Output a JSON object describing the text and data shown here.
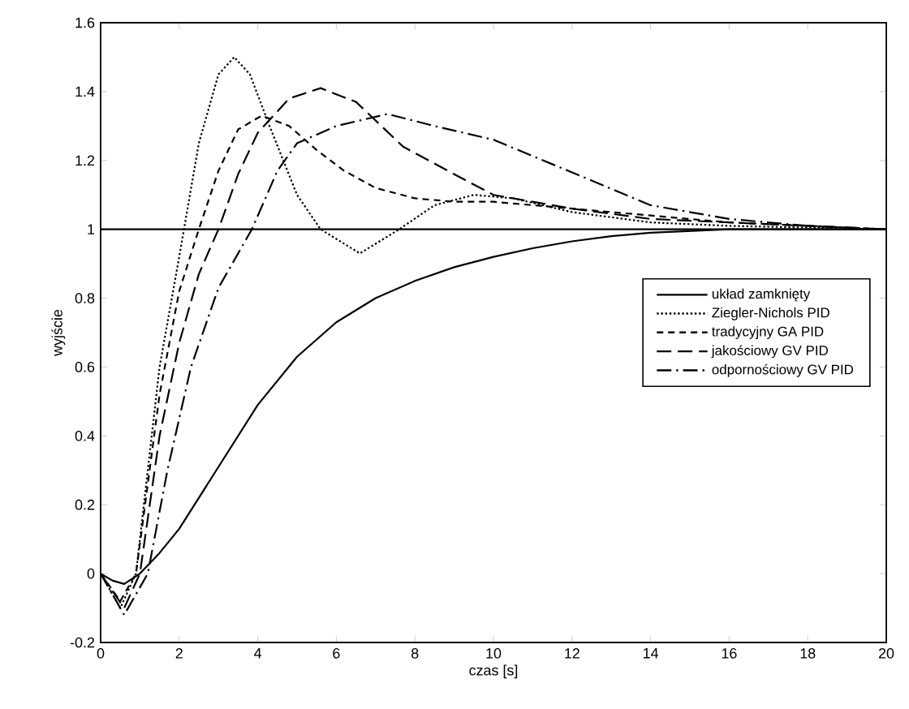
{
  "chart_data": {
    "type": "line",
    "xlabel": "czas [s]",
    "ylabel": "wyjście",
    "xlim": [
      0,
      20
    ],
    "ylim": [
      -0.2,
      1.6
    ],
    "xticks": [
      0,
      2,
      4,
      6,
      8,
      10,
      12,
      14,
      16,
      18,
      20
    ],
    "yticks": [
      -0.2,
      0,
      0.2,
      0.4,
      0.6,
      0.8,
      1,
      1.2,
      1.4,
      1.6
    ],
    "legend": "right",
    "grid": false,
    "marker": "none",
    "ref_lines": [
      {
        "axis": "y",
        "value": 1,
        "color": "#000000",
        "line_style": "solid"
      }
    ],
    "series": [
      {
        "name": "układ zamknięty",
        "color": "#000000",
        "line_style": "solid",
        "x": [
          0,
          0.3,
          0.6,
          1,
          1.5,
          2,
          3,
          4,
          5,
          6,
          7,
          8,
          9,
          10,
          11,
          12,
          13,
          14,
          16,
          18,
          20
        ],
        "values": [
          0,
          -0.02,
          -0.03,
          0,
          0.06,
          0.13,
          0.31,
          0.49,
          0.63,
          0.73,
          0.8,
          0.85,
          0.89,
          0.92,
          0.945,
          0.965,
          0.98,
          0.99,
          1.0,
          1.0,
          1.0
        ]
      },
      {
        "name": "Ziegler-Nichols PID",
        "color": "#000000",
        "line_style": "dotted",
        "x": [
          0,
          0.5,
          0.9,
          1.2,
          1.5,
          2,
          2.5,
          3,
          3.4,
          3.8,
          4.3,
          5,
          5.6,
          6.6,
          7.6,
          8.5,
          9.5,
          10.5,
          12,
          14,
          16,
          20
        ],
        "values": [
          0,
          -0.1,
          0,
          0.3,
          0.6,
          0.92,
          1.25,
          1.45,
          1.5,
          1.45,
          1.3,
          1.1,
          1.0,
          0.93,
          1.0,
          1.07,
          1.1,
          1.09,
          1.05,
          1.02,
          1.01,
          1.0
        ]
      },
      {
        "name": "tradycyjny GA PID",
        "color": "#000000",
        "line_style": "dashed",
        "x": [
          0,
          0.5,
          0.9,
          1.5,
          2,
          2.5,
          3,
          3.5,
          4.1,
          4.8,
          5.5,
          6.2,
          7,
          8,
          9,
          10,
          12,
          14,
          16,
          18,
          20
        ],
        "values": [
          0,
          -0.08,
          0,
          0.52,
          0.82,
          1.0,
          1.17,
          1.29,
          1.33,
          1.3,
          1.23,
          1.17,
          1.12,
          1.09,
          1.08,
          1.08,
          1.06,
          1.04,
          1.02,
          1.01,
          1.0
        ]
      },
      {
        "name": "jakościowy GV PID",
        "color": "#000000",
        "line_style": "long dashed",
        "x": [
          0,
          0.6,
          1,
          1.5,
          2,
          2.5,
          3,
          3.5,
          4,
          4.8,
          5.6,
          6.5,
          7.7,
          9,
          10,
          12,
          14,
          16,
          18,
          20
        ],
        "values": [
          0,
          -0.1,
          0,
          0.4,
          0.67,
          0.87,
          1.0,
          1.16,
          1.28,
          1.38,
          1.41,
          1.37,
          1.24,
          1.16,
          1.1,
          1.06,
          1.03,
          1.02,
          1.01,
          1.0
        ]
      },
      {
        "name": "odpornościowy GV PID",
        "color": "#000000",
        "line_style": "dashdot",
        "x": [
          0,
          0.6,
          1.2,
          1.7,
          2.3,
          3,
          3.85,
          4.5,
          5,
          6,
          7.3,
          8.5,
          10,
          11.9,
          14,
          16,
          18,
          20
        ],
        "values": [
          0,
          -0.12,
          0,
          0.3,
          0.6,
          0.83,
          1.0,
          1.17,
          1.25,
          1.3,
          1.335,
          1.3,
          1.26,
          1.17,
          1.07,
          1.03,
          1.01,
          1.0
        ]
      }
    ]
  }
}
